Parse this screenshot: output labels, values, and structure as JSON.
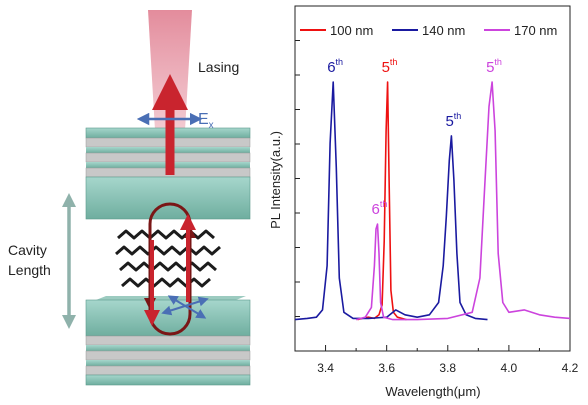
{
  "schematic": {
    "lasing_label": "Lasing",
    "field_label": "E",
    "field_subscript": "x",
    "cavity_label_line1": "Cavity",
    "cavity_label_line2": "Length",
    "colors": {
      "mirror_teal": "#7fbfb3",
      "laser_beam": "#d9808f",
      "mode_loop": "#7a1616",
      "field_arrow": "#4a6fb5"
    }
  },
  "chart_data": {
    "type": "line",
    "xlabel": "Wavelength(μm)",
    "ylabel": "PL Intensity(a.u.)",
    "xlim": [
      3.3,
      4.2
    ],
    "x_ticks": [
      "3.4",
      "3.6",
      "3.8",
      "4.0",
      "4.2"
    ],
    "legend_placement": "top",
    "series": [
      {
        "name": "100 nm",
        "color": "#ee1111",
        "x": [
          3.505,
          3.52,
          3.54,
          3.56,
          3.575,
          3.585,
          3.592,
          3.598,
          3.603,
          3.608,
          3.614,
          3.622,
          3.635,
          3.65,
          3.665
        ],
        "y": [
          0.03,
          0.035,
          0.04,
          0.035,
          0.05,
          0.09,
          0.35,
          0.8,
          1.0,
          0.6,
          0.15,
          0.06,
          0.04,
          0.035,
          0.03
        ]
      },
      {
        "name": "140 nm",
        "color": "#1a1aa0",
        "x": [
          3.3,
          3.34,
          3.37,
          3.39,
          3.405,
          3.415,
          3.425,
          3.435,
          3.445,
          3.46,
          3.49,
          3.54,
          3.6,
          3.63,
          3.66,
          3.7,
          3.74,
          3.77,
          3.785,
          3.795,
          3.805,
          3.812,
          3.82,
          3.83,
          3.84,
          3.86,
          3.89,
          3.93
        ],
        "y": [
          0.03,
          0.035,
          0.04,
          0.07,
          0.25,
          0.75,
          1.0,
          0.65,
          0.2,
          0.06,
          0.035,
          0.035,
          0.04,
          0.07,
          0.05,
          0.04,
          0.05,
          0.1,
          0.25,
          0.45,
          0.68,
          0.78,
          0.6,
          0.3,
          0.1,
          0.05,
          0.035,
          0.03
        ]
      },
      {
        "name": "170 nm",
        "color": "#cc44dd",
        "x": [
          3.5,
          3.53,
          3.55,
          3.56,
          3.565,
          3.57,
          3.575,
          3.58,
          3.59,
          3.62,
          3.7,
          3.8,
          3.88,
          3.905,
          3.92,
          3.935,
          3.945,
          3.955,
          3.965,
          3.98,
          4.0,
          4.05,
          4.1,
          4.15,
          4.2
        ],
        "y": [
          0.03,
          0.04,
          0.08,
          0.25,
          0.4,
          0.42,
          0.3,
          0.1,
          0.04,
          0.03,
          0.03,
          0.035,
          0.06,
          0.2,
          0.55,
          0.9,
          1.0,
          0.8,
          0.3,
          0.1,
          0.06,
          0.07,
          0.05,
          0.04,
          0.035
        ]
      }
    ],
    "annotations": [
      {
        "text": "6",
        "sup": "th",
        "series": "140 nm",
        "x": 3.425,
        "y": 1.0
      },
      {
        "text": "5",
        "sup": "th",
        "series": "100 nm",
        "x": 3.603,
        "y": 1.0
      },
      {
        "text": "6",
        "sup": "th",
        "series": "170 nm",
        "x": 3.57,
        "y": 0.42
      },
      {
        "text": "5",
        "sup": "th",
        "series": "140 nm",
        "x": 3.812,
        "y": 0.78
      },
      {
        "text": "5",
        "sup": "th",
        "series": "170 nm",
        "x": 3.945,
        "y": 1.0
      }
    ]
  }
}
